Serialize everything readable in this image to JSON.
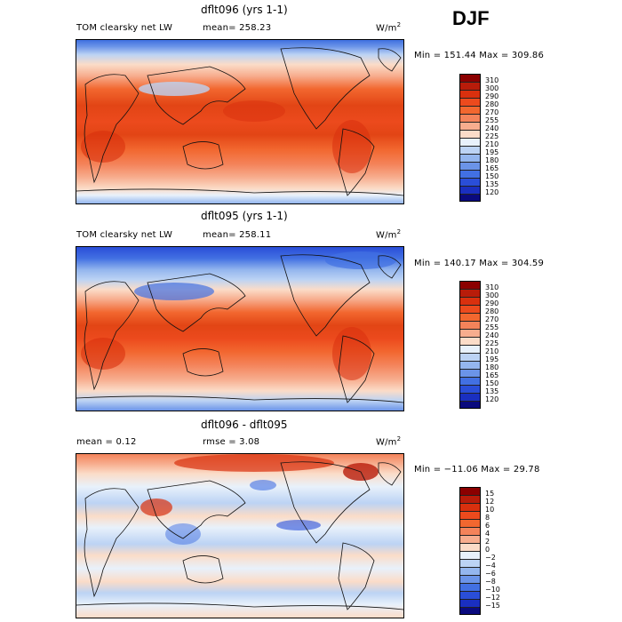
{
  "season": "DJF",
  "units_label": "W/m",
  "units_exp": "2",
  "panels": [
    {
      "title": "dflt096 (yrs 1-1)",
      "left_label": "TOM clearsky net LW",
      "stat": "mean=  258.23",
      "minmax": "Min = 151.44 Max = 309.86"
    },
    {
      "title": "dflt095 (yrs 1-1)",
      "left_label": "TOM clearsky net LW",
      "stat": "mean=  258.11",
      "minmax": "Min = 140.17 Max = 304.59"
    },
    {
      "title": "dflt096 - dflt095",
      "left_label": "mean =    0.12",
      "stat": "rmse =    3.08",
      "minmax": "Min = −11.06 Max =  29.78"
    }
  ],
  "colorbar_abs": {
    "levels": [
      "310",
      "300",
      "290",
      "280",
      "270",
      "255",
      "240",
      "225",
      "210",
      "195",
      "180",
      "165",
      "150",
      "135",
      "120"
    ],
    "colors": [
      "#8b0000",
      "#b81c0a",
      "#d9300e",
      "#ec4a1d",
      "#f2672f",
      "#f4835a",
      "#f7ad8e",
      "#fbdcc8",
      "#e8f1fb",
      "#bcd3f4",
      "#94b6ee",
      "#6b94e8",
      "#4270e2",
      "#2a4ed8",
      "#1a2fc0",
      "#0a0a7e"
    ]
  },
  "colorbar_diff": {
    "levels": [
      "15",
      "12",
      "10",
      "8",
      "6",
      "4",
      "2",
      "0",
      "−2",
      "−4",
      "−6",
      "−8",
      "−10",
      "−12",
      "−15"
    ],
    "colors": [
      "#8b0000",
      "#b81c0a",
      "#d9300e",
      "#ec4a1d",
      "#f2672f",
      "#f4835a",
      "#f7ad8e",
      "#fbdcc8",
      "#e8f1fb",
      "#bcd3f4",
      "#94b6ee",
      "#6b94e8",
      "#4270e2",
      "#2a4ed8",
      "#1a2fc0",
      "#0a0a7e"
    ]
  }
}
